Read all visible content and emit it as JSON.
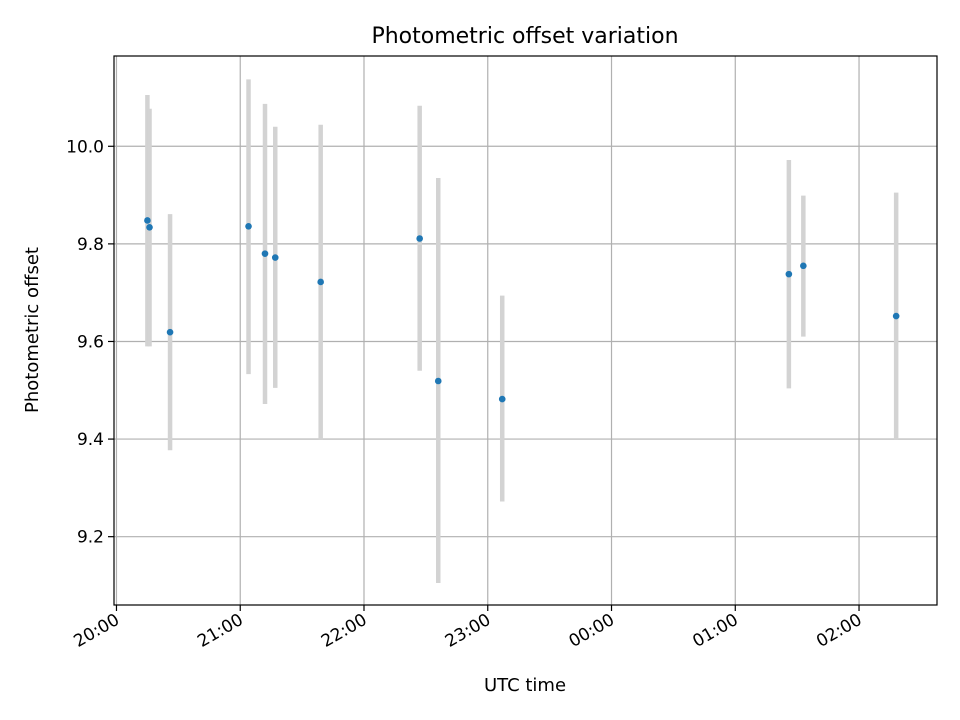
{
  "chart_data": {
    "type": "scatter",
    "title": "Photometric offset variation",
    "xlabel": "UTC time",
    "ylabel": "Photometric offset",
    "x_unit": "UTC time (hours after 20:00)",
    "xlim": [
      -0.02,
      6.63
    ],
    "ylim": [
      9.06,
      10.185
    ],
    "x_ticks": [
      {
        "value": 0,
        "label": "20:00"
      },
      {
        "value": 1,
        "label": "21:00"
      },
      {
        "value": 2,
        "label": "22:00"
      },
      {
        "value": 3,
        "label": "23:00"
      },
      {
        "value": 4,
        "label": "00:00"
      },
      {
        "value": 5,
        "label": "01:00"
      },
      {
        "value": 6,
        "label": "02:00"
      }
    ],
    "y_ticks": [
      {
        "value": 9.2,
        "label": "9.2"
      },
      {
        "value": 9.4,
        "label": "9.4"
      },
      {
        "value": 9.6,
        "label": "9.6"
      },
      {
        "value": 9.8,
        "label": "9.8"
      },
      {
        "value": 10.0,
        "label": "10.0"
      }
    ],
    "grid": true,
    "marker_color": "#1f77b4",
    "errorbar_color": "#d3d3d3",
    "points": [
      {
        "time": "20:15",
        "x": 0.25,
        "y": 9.848,
        "y_low": 9.59,
        "y_high": 10.105
      },
      {
        "time": "20:16",
        "x": 0.267,
        "y": 9.834,
        "y_low": 9.59,
        "y_high": 10.077
      },
      {
        "time": "20:26",
        "x": 0.433,
        "y": 9.619,
        "y_low": 9.377,
        "y_high": 9.861
      },
      {
        "time": "21:04",
        "x": 1.067,
        "y": 9.836,
        "y_low": 9.533,
        "y_high": 10.137
      },
      {
        "time": "21:12",
        "x": 1.2,
        "y": 9.78,
        "y_low": 9.472,
        "y_high": 10.087
      },
      {
        "time": "21:17",
        "x": 1.283,
        "y": 9.772,
        "y_low": 9.505,
        "y_high": 10.04
      },
      {
        "time": "21:39",
        "x": 1.65,
        "y": 9.722,
        "y_low": 9.4,
        "y_high": 10.044
      },
      {
        "time": "22:26",
        "x": 2.45,
        "y": 9.811,
        "y_low": 9.54,
        "y_high": 10.083
      },
      {
        "time": "22:35",
        "x": 2.6,
        "y": 9.519,
        "y_low": 9.105,
        "y_high": 9.935
      },
      {
        "time": "23:06",
        "x": 3.117,
        "y": 9.482,
        "y_low": 9.272,
        "y_high": 9.694
      },
      {
        "time": "01:25",
        "x": 5.433,
        "y": 9.738,
        "y_low": 9.504,
        "y_high": 9.972
      },
      {
        "time": "01:32",
        "x": 5.55,
        "y": 9.755,
        "y_low": 9.61,
        "y_high": 9.899
      },
      {
        "time": "02:17",
        "x": 6.3,
        "y": 9.652,
        "y_low": 9.4,
        "y_high": 9.905
      }
    ]
  }
}
